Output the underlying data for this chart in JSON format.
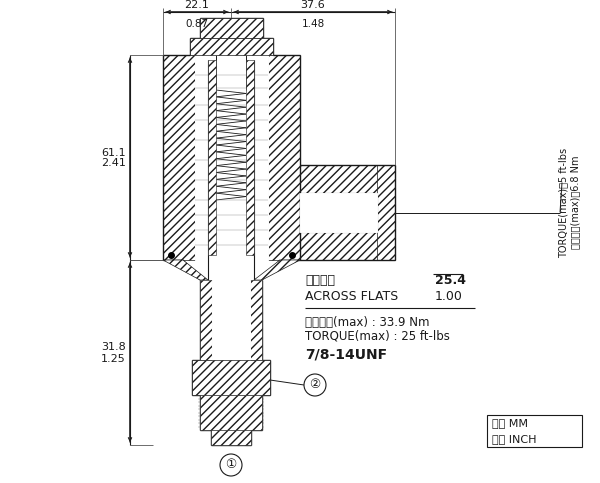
{
  "bg_color": "#ffffff",
  "line_color": "#1a1a1a",
  "figsize": [
    6.0,
    4.83
  ],
  "dpi": 100,
  "annotations": {
    "top_dim1_mm": "22.1",
    "top_dim1_inch": "0.87",
    "top_dim2_mm": "37.6",
    "top_dim2_inch": "1.48",
    "left_dim1_mm": "61.1",
    "left_dim1_inch": "2.41",
    "left_dim2_mm": "31.8",
    "left_dim2_inch": "1.25",
    "across_flats_label_cn": "對邊寬度",
    "across_flats_label_en": "ACROSS FLATS",
    "across_flats_mm": "25.4",
    "across_flats_inch": "1.00",
    "torque1_cn": "安装扭矩(max) : 33.9 Nm",
    "torque1_en": "TORQUE(max) : 25 ft-lbs",
    "torque2_cn": "安装扭矩(max)：6.8 Nm",
    "torque2_en": "TORQUE(max)：5 ft-lbs",
    "thread": "7/8-14UNF",
    "circle1": "①",
    "circle2": "②",
    "legend_mm": "毫米 MM",
    "legend_inch": "英寸 INCH"
  }
}
